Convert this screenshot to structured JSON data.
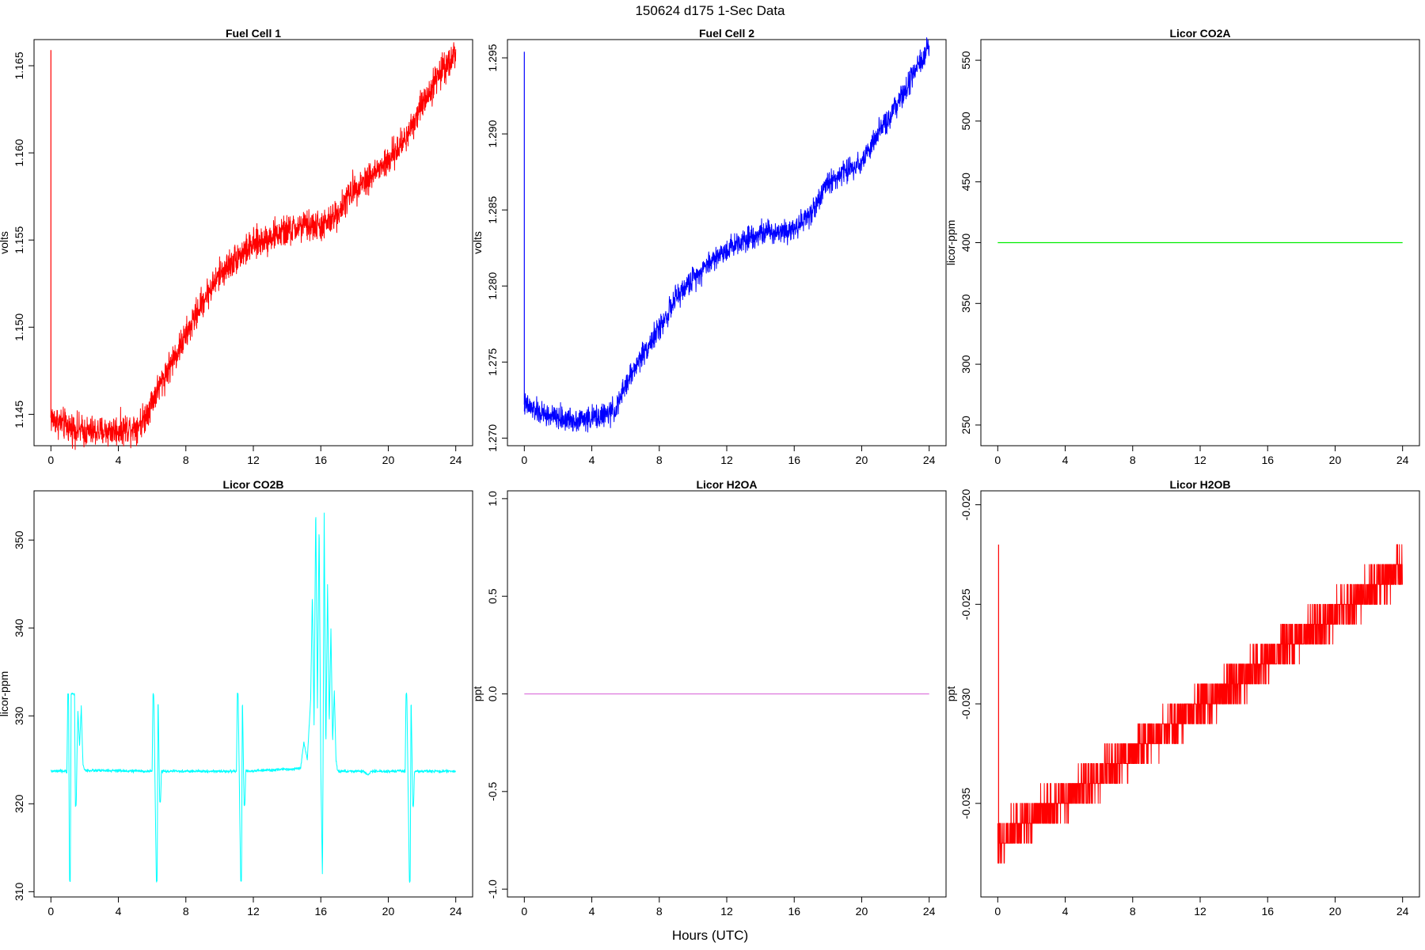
{
  "title": "150624   d175   1-Sec Data",
  "xlabel": "Hours (UTC)",
  "chart_data": [
    {
      "type": "line",
      "title": "Fuel Cell 1",
      "ylabel": "volts",
      "color": "#ff0000",
      "xlim": [
        -1,
        25
      ],
      "ylim": [
        1.1432,
        1.1665
      ],
      "xticks": [
        "0",
        "4",
        "8",
        "12",
        "16",
        "20",
        "24"
      ],
      "yticks": [
        "1.145",
        "1.150",
        "1.155",
        "1.160",
        "1.165"
      ],
      "noise": 0.0008,
      "spike": [
        0,
        1.1659
      ],
      "x": [
        0,
        1,
        2,
        3,
        4,
        5,
        5.5,
        6,
        7,
        8,
        9,
        10,
        11,
        12,
        13,
        14,
        15,
        16,
        16.5,
        17,
        18,
        19,
        20,
        21,
        22,
        23,
        24
      ],
      "y": [
        1.1448,
        1.1443,
        1.144,
        1.144,
        1.1441,
        1.1443,
        1.1447,
        1.1458,
        1.1477,
        1.1495,
        1.1515,
        1.153,
        1.154,
        1.1547,
        1.1552,
        1.1555,
        1.1558,
        1.1558,
        1.156,
        1.1566,
        1.158,
        1.1587,
        1.1595,
        1.1608,
        1.1628,
        1.1645,
        1.1658
      ]
    },
    {
      "type": "line",
      "title": "Fuel Cell 2",
      "ylabel": "volts",
      "color": "#0000ff",
      "xlim": [
        -1,
        25
      ],
      "ylim": [
        1.2695,
        1.2962
      ],
      "xticks": [
        "0",
        "4",
        "8",
        "12",
        "16",
        "20",
        "24"
      ],
      "yticks": [
        "1.270",
        "1.275",
        "1.280",
        "1.285",
        "1.290",
        "1.295"
      ],
      "noise": 0.0007,
      "spike": [
        0,
        1.2954
      ],
      "x": [
        0,
        1,
        2,
        3,
        4,
        5,
        5.5,
        6,
        7,
        8,
        9,
        10,
        11,
        12,
        13,
        14,
        15,
        16,
        17,
        18,
        19,
        20,
        21,
        22,
        23,
        24
      ],
      "y": [
        1.2722,
        1.2716,
        1.2713,
        1.2712,
        1.2713,
        1.2716,
        1.272,
        1.2735,
        1.2755,
        1.2772,
        1.2792,
        1.2805,
        1.2816,
        1.2824,
        1.2831,
        1.2835,
        1.2836,
        1.2838,
        1.2848,
        1.2868,
        1.2875,
        1.2882,
        1.29,
        1.2917,
        1.2937,
        1.2957
      ]
    },
    {
      "type": "line",
      "title": "Licor CO2A",
      "ylabel": "licor-ppm",
      "color": "#00ee00",
      "xlim": [
        -1,
        25
      ],
      "ylim": [
        233,
        567
      ],
      "xticks": [
        "0",
        "4",
        "8",
        "12",
        "16",
        "20",
        "24"
      ],
      "yticks": [
        "250",
        "300",
        "350",
        "400",
        "450",
        "500",
        "550"
      ],
      "noise": 0,
      "x": [
        0,
        24
      ],
      "y": [
        400,
        400
      ]
    },
    {
      "type": "line",
      "title": "Licor CO2B",
      "ylabel": "licor-ppm",
      "color": "#00ffff",
      "xlim": [
        -1,
        25
      ],
      "ylim": [
        309.4,
        355.6
      ],
      "xticks": [
        "0",
        "4",
        "8",
        "12",
        "16",
        "20",
        "24"
      ],
      "yticks": [
        "310",
        "320",
        "330",
        "340",
        "350"
      ],
      "noise": 0.15,
      "x": [
        0,
        0.95,
        1.0,
        1.05,
        1.1,
        1.15,
        1.2,
        1.4,
        1.45,
        1.5,
        1.55,
        1.6,
        1.7,
        1.8,
        1.9,
        2.0,
        6.0,
        6.05,
        6.1,
        6.25,
        6.3,
        6.35,
        6.45,
        6.5,
        6.55,
        11.0,
        11.05,
        11.1,
        11.25,
        11.3,
        11.35,
        11.45,
        11.5,
        11.55,
        14.8,
        15.0,
        15.2,
        15.4,
        15.5,
        15.6,
        15.7,
        15.8,
        15.9,
        16.0,
        16.1,
        16.2,
        16.3,
        16.4,
        16.5,
        16.6,
        16.7,
        16.8,
        16.9,
        17.0,
        18.5,
        18.8,
        19.0,
        21.0,
        21.05,
        21.1,
        21.25,
        21.3,
        21.35,
        21.45,
        21.5,
        21.55,
        24.0
      ],
      "y": [
        323.7,
        323.7,
        332.5,
        332.5,
        311.2,
        311.2,
        332.5,
        332.5,
        319.8,
        319.8,
        326.0,
        330.5,
        326.5,
        331.0,
        324.5,
        323.8,
        323.7,
        332.5,
        332.5,
        311.2,
        311.2,
        332.5,
        320.2,
        320.2,
        323.7,
        323.7,
        332.5,
        332.5,
        311.2,
        311.2,
        332.5,
        319.8,
        319.8,
        323.7,
        324.0,
        327.0,
        325.0,
        332.0,
        344.0,
        329.0,
        354.0,
        331.0,
        352.0,
        324.0,
        311.2,
        353.0,
        326.0,
        345.0,
        329.0,
        340.0,
        327.0,
        333.0,
        325.0,
        323.7,
        323.7,
        323.3,
        323.7,
        323.7,
        332.5,
        332.5,
        311.2,
        311.2,
        332.5,
        319.8,
        319.8,
        323.7,
        323.7
      ]
    },
    {
      "type": "line",
      "title": "Licor H2OA",
      "ylabel": "ppt",
      "color": "#dd77dd",
      "xlim": [
        -1,
        25
      ],
      "ylim": [
        -1.04,
        1.04
      ],
      "xticks": [
        "0",
        "4",
        "8",
        "12",
        "16",
        "20",
        "24"
      ],
      "yticks": [
        "-1.0",
        "-0.5",
        "0.0",
        "0.5",
        "1.0"
      ],
      "noise": 0,
      "x": [
        0,
        24
      ],
      "y": [
        0,
        0
      ]
    },
    {
      "type": "line",
      "title": "Licor H2OB",
      "ylabel": "ppt",
      "color": "#ff0000",
      "xlim": [
        -1,
        25
      ],
      "ylim": [
        -0.0397,
        -0.0193
      ],
      "xticks": [
        "0",
        "4",
        "8",
        "12",
        "16",
        "20",
        "24"
      ],
      "yticks": [
        "-0.035",
        "-0.030",
        "-0.025",
        "-0.020"
      ],
      "noise": 0,
      "quantized": true,
      "step": 0.001,
      "spike": [
        0.05,
        -0.022
      ],
      "x": [
        0,
        1,
        2,
        3,
        4,
        5,
        6,
        7,
        8,
        9,
        10,
        11,
        12,
        13,
        14,
        15,
        16,
        17,
        18,
        19,
        20,
        21,
        22,
        23,
        24
      ],
      "y": [
        -0.0372,
        -0.0362,
        -0.0357,
        -0.0352,
        -0.0347,
        -0.0342,
        -0.0336,
        -0.033,
        -0.0324,
        -0.0318,
        -0.0313,
        -0.0307,
        -0.0301,
        -0.0296,
        -0.029,
        -0.0284,
        -0.0278,
        -0.0272,
        -0.0266,
        -0.0261,
        -0.0255,
        -0.0249,
        -0.0243,
        -0.0237,
        -0.0232
      ]
    }
  ]
}
